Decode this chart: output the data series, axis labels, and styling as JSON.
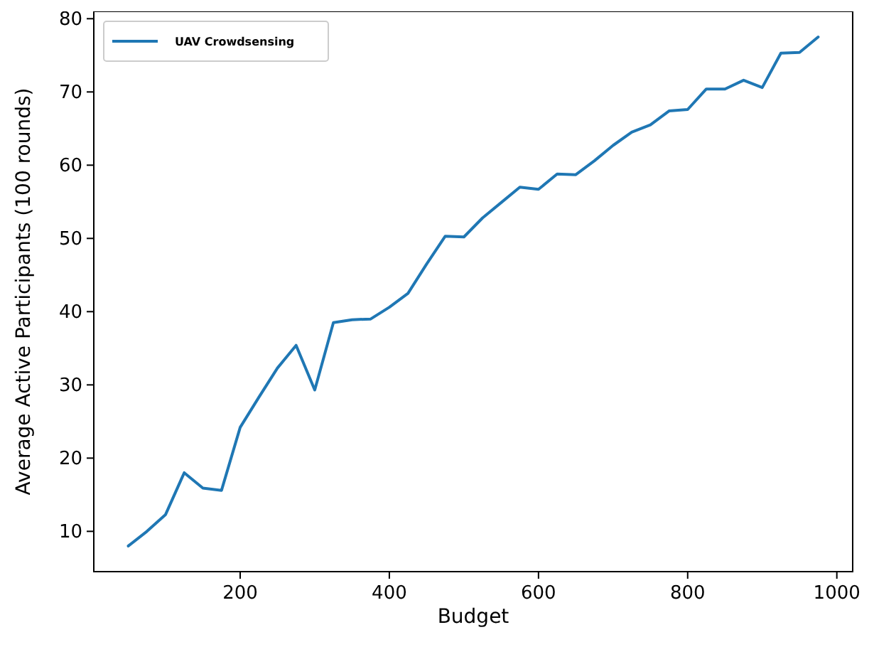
{
  "chart_data": {
    "type": "line",
    "xlabel": "Budget",
    "ylabel": "Average Active Participants (100 rounds)",
    "x": [
      50,
      75,
      100,
      125,
      150,
      175,
      200,
      225,
      250,
      275,
      300,
      325,
      350,
      375,
      400,
      425,
      450,
      475,
      500,
      525,
      550,
      575,
      600,
      625,
      650,
      675,
      700,
      725,
      750,
      775,
      800,
      825,
      850,
      875,
      900,
      925,
      950,
      975
    ],
    "series": [
      {
        "name": "UAV Crowdsensing",
        "color": "#1f77b4",
        "values": [
          8.0,
          10.0,
          12.3,
          18.0,
          15.9,
          15.6,
          24.2,
          28.3,
          32.3,
          35.4,
          29.3,
          38.5,
          38.9,
          39.0,
          40.6,
          42.5,
          46.5,
          50.3,
          50.2,
          52.8,
          54.9,
          57.0,
          56.7,
          58.8,
          58.7,
          60.6,
          62.7,
          64.5,
          65.5,
          67.4,
          67.6,
          70.4,
          70.4,
          71.6,
          70.6,
          75.3,
          75.4,
          77.5
        ]
      }
    ],
    "xlim": [
      3.75,
      1021.25
    ],
    "ylim": [
      4.5,
      81
    ],
    "xticks": [
      200,
      400,
      600,
      800,
      1000
    ],
    "yticks": [
      10,
      20,
      30,
      40,
      50,
      60,
      70,
      80
    ],
    "legend": "top left",
    "grid": false,
    "marker": "none",
    "line_style": "solid"
  }
}
